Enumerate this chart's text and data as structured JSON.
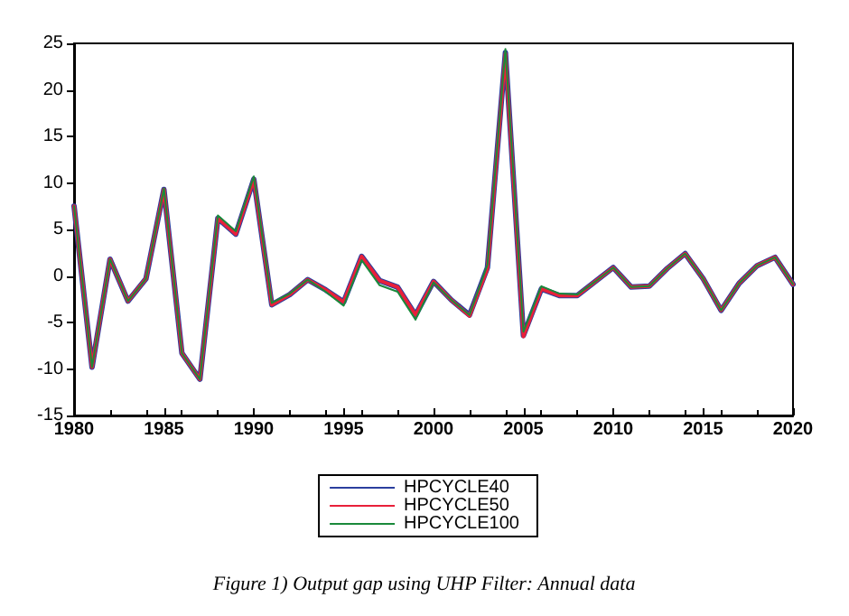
{
  "chart_data": {
    "type": "line",
    "x": [
      1980,
      1981,
      1982,
      1983,
      1984,
      1985,
      1986,
      1987,
      1988,
      1989,
      1990,
      1991,
      1992,
      1993,
      1994,
      1995,
      1996,
      1997,
      1998,
      1999,
      2000,
      2001,
      2002,
      2003,
      2004,
      2005,
      2006,
      2007,
      2008,
      2009,
      2010,
      2011,
      2012,
      2013,
      2014,
      2015,
      2016,
      2017,
      2018,
      2019,
      2020
    ],
    "series": [
      {
        "name": "HPCYCLE40",
        "color": "#2b3f9e",
        "values": [
          7.5,
          -9.8,
          1.8,
          -2.7,
          -0.3,
          9.3,
          -8.3,
          -11.1,
          6.2,
          4.5,
          10.4,
          -3.1,
          -2.0,
          -0.4,
          -1.5,
          -2.8,
          2.1,
          -0.5,
          -1.2,
          -4.2,
          -0.6,
          -2.6,
          -4.2,
          0.9,
          24.0,
          -6.4,
          -1.4,
          -2.1,
          -2.1,
          -0.6,
          0.9,
          -1.2,
          -1.1,
          0.8,
          2.4,
          -0.3,
          -3.7,
          -0.8,
          1.1,
          2.0,
          -0.9
        ]
      },
      {
        "name": "HPCYCLE50",
        "color": "#e8203a",
        "values": [
          7.5,
          -9.8,
          1.8,
          -2.7,
          -0.3,
          9.3,
          -8.3,
          -11.1,
          6.2,
          4.5,
          10.4,
          -3.1,
          -2.0,
          -0.4,
          -1.5,
          -2.8,
          2.1,
          -0.5,
          -1.2,
          -4.2,
          -0.6,
          -2.6,
          -4.3,
          0.8,
          23.9,
          -6.5,
          -1.4,
          -2.1,
          -2.1,
          -0.6,
          0.9,
          -1.2,
          -1.1,
          0.8,
          2.4,
          -0.3,
          -3.7,
          -0.8,
          1.1,
          2.0,
          -0.9
        ]
      },
      {
        "name": "HPCYCLE100",
        "color": "#1a8a3a",
        "values": [
          7.5,
          -9.8,
          1.8,
          -2.7,
          -0.3,
          9.4,
          -8.3,
          -11.1,
          6.5,
          4.8,
          10.7,
          -2.9,
          -1.9,
          -0.4,
          -1.7,
          -3.2,
          1.7,
          -1.0,
          -1.7,
          -4.7,
          -0.7,
          -2.6,
          -4.2,
          1.2,
          24.4,
          -6.0,
          -1.1,
          -1.9,
          -2.0,
          -0.6,
          0.9,
          -1.2,
          -1.1,
          0.8,
          2.4,
          -0.3,
          -3.7,
          -0.8,
          1.1,
          2.0,
          -0.9
        ]
      }
    ],
    "xlim": [
      1980,
      2020
    ],
    "xticks": [
      1980,
      1985,
      1990,
      1995,
      2000,
      2005,
      2010,
      2015,
      2020
    ],
    "ylim": [
      -15,
      25
    ],
    "yticks": [
      -15,
      -10,
      -5,
      0,
      5,
      10,
      15,
      20,
      25
    ],
    "grid": false,
    "legend": "bottom",
    "marker": "none",
    "line_style": "solid",
    "annotations": [
      "Figure 1) Output gap using UHP Filter: Annual data"
    ]
  }
}
